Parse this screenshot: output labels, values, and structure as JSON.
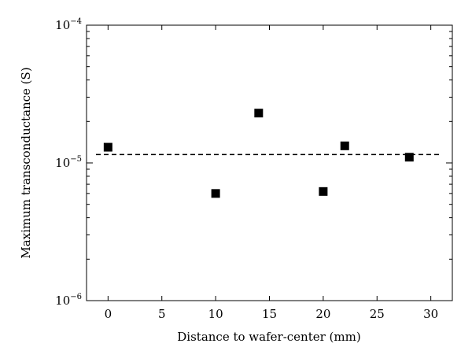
{
  "chart_data": {
    "type": "scatter",
    "title": "",
    "xlabel": "Distance to wafer-center (mm)",
    "ylabel": "Maximum transconductance (S)",
    "xlim": [
      -2,
      32
    ],
    "ylim": [
      1e-06,
      0.0001
    ],
    "y_scale": "log",
    "grid": false,
    "x_ticks": [
      0,
      5,
      10,
      15,
      20,
      25,
      30
    ],
    "x_tick_labels": [
      "0",
      "5",
      "10",
      "15",
      "20",
      "25",
      "30"
    ],
    "y_ticks": [
      1e-06,
      1e-05,
      0.0001
    ],
    "y_tick_labels": [
      {
        "base": "10",
        "exp": "−6"
      },
      {
        "base": "10",
        "exp": "−5"
      },
      {
        "base": "10",
        "exp": "−4"
      }
    ],
    "series": [
      {
        "marker": "square",
        "color": "#000000",
        "points": [
          {
            "x": 0,
            "y": 1.3e-05
          },
          {
            "x": 10,
            "y": 6e-06
          },
          {
            "x": 14,
            "y": 2.3e-05
          },
          {
            "x": 20,
            "y": 6.2e-06
          },
          {
            "x": 22,
            "y": 1.33e-05
          },
          {
            "x": 28,
            "y": 1.1e-05
          }
        ]
      }
    ],
    "reference_line": {
      "y": 1.15e-05,
      "x_range": [
        -2,
        31
      ],
      "style": "dashed",
      "color": "#000000"
    }
  }
}
